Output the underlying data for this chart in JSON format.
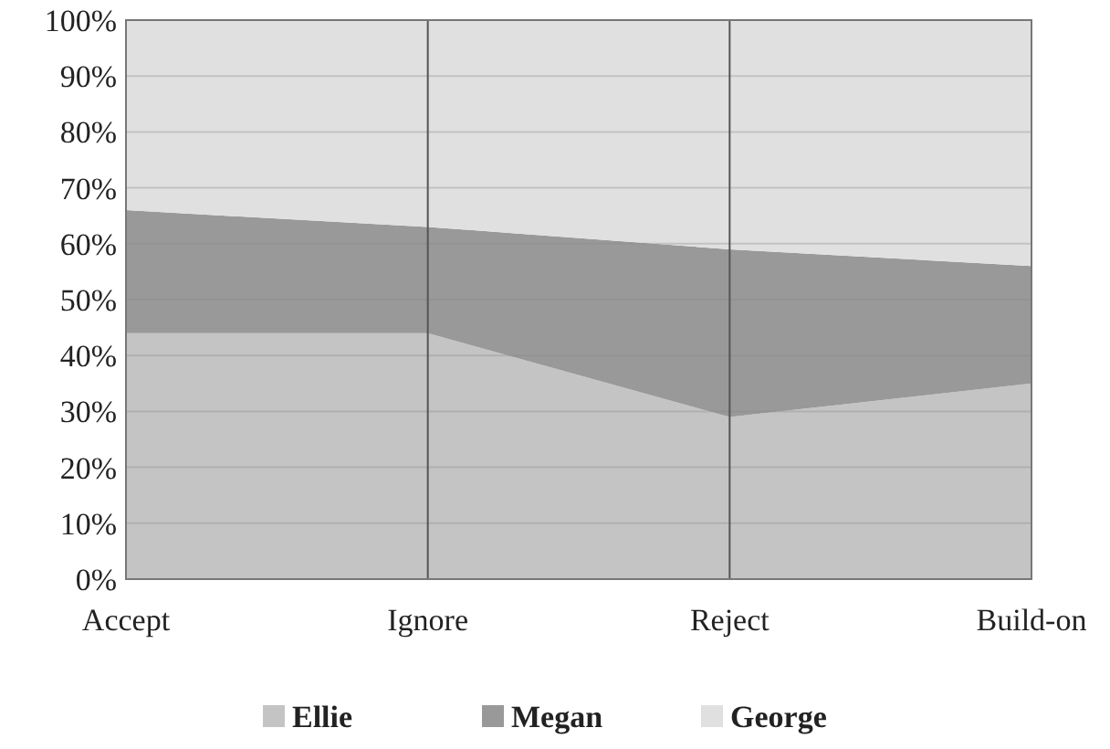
{
  "chart_data": {
    "type": "area",
    "stacked": true,
    "categories": [
      "Accept",
      "Ignore",
      "Reject",
      "Build-on"
    ],
    "series": [
      {
        "name": "Ellie",
        "color": "#c4c4c4",
        "values": [
          44,
          44,
          29,
          35
        ]
      },
      {
        "name": "Megan",
        "color": "#999999",
        "values": [
          22,
          19,
          30,
          21
        ]
      },
      {
        "name": "George",
        "color": "#e0e0e0",
        "values": [
          34,
          37,
          41,
          44
        ]
      }
    ],
    "ylim": [
      0,
      100
    ],
    "yticks": [
      {
        "value": 0,
        "label": "0%"
      },
      {
        "value": 10,
        "label": "10%"
      },
      {
        "value": 20,
        "label": "20%"
      },
      {
        "value": 30,
        "label": "30%"
      },
      {
        "value": 40,
        "label": "40%"
      },
      {
        "value": 50,
        "label": "50%"
      },
      {
        "value": 60,
        "label": "60%"
      },
      {
        "value": 70,
        "label": "70%"
      },
      {
        "value": 80,
        "label": "80%"
      },
      {
        "value": 90,
        "label": "90%"
      },
      {
        "value": 100,
        "label": "100%"
      }
    ],
    "grid": true,
    "legend": "bottom"
  }
}
